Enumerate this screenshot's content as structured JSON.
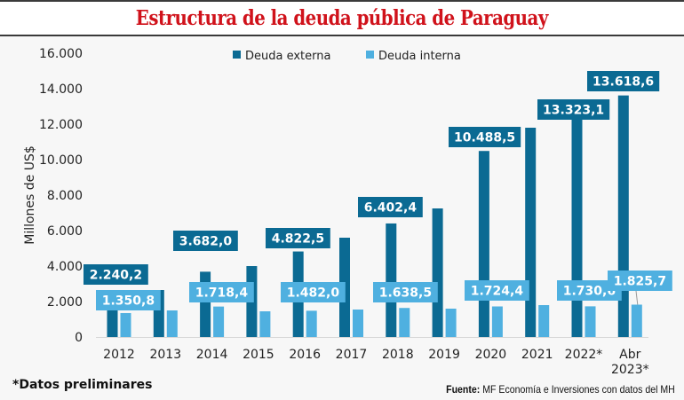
{
  "header": {
    "title": "Estructura de la deuda pública de Paraguay"
  },
  "footer": {
    "footnote": "*Datos preliminares",
    "source_label": "Fuente:",
    "source_text": "MF Economía e Inversiones con datos del MH"
  },
  "colors": {
    "title": "#d0121b",
    "externa": "#0b6a93",
    "interna": "#4fb0e0",
    "axis_text": "#222222"
  },
  "chart_data": {
    "type": "bar",
    "title": "Estructura de la deuda pública de Paraguay",
    "xlabel": "",
    "ylabel": "Millones de US$",
    "ylim": [
      0,
      16000
    ],
    "yticks": [
      0,
      2000,
      4000,
      6000,
      8000,
      10000,
      12000,
      14000,
      16000
    ],
    "ytick_labels": [
      "0",
      "2.000",
      "4.000",
      "6.000",
      "8.000",
      "10.000",
      "12.000",
      "14.000",
      "16.000"
    ],
    "grid": false,
    "legend_position": "top-center",
    "categories": [
      "2012",
      "2013",
      "2014",
      "2015",
      "2016",
      "2017",
      "2018",
      "2019",
      "2020",
      "2021",
      "2022*",
      "Abr 2023*"
    ],
    "category_lines": [
      [
        "2012"
      ],
      [
        "2013"
      ],
      [
        "2014"
      ],
      [
        "2015"
      ],
      [
        "2016"
      ],
      [
        "2017"
      ],
      [
        "2018"
      ],
      [
        "2019"
      ],
      [
        "2020"
      ],
      [
        "2021"
      ],
      [
        "2022*"
      ],
      [
        "Abr",
        "2023*"
      ]
    ],
    "series": [
      {
        "name": "Deuda externa",
        "values": [
          2240.2,
          2650,
          3682.0,
          4000,
          4822.5,
          5600,
          6402.4,
          7250,
          10488.5,
          11800,
          13323.1,
          13618.6
        ],
        "labels": [
          "2.240,2",
          null,
          "3.682,0",
          null,
          "4.822,5",
          null,
          "6.402,4",
          null,
          "10.488,5",
          null,
          "13.323,1",
          "13.618,6"
        ]
      },
      {
        "name": "Deuda interna",
        "values": [
          1350.8,
          1500,
          1718.4,
          1450,
          1482.0,
          1550,
          1638.5,
          1600,
          1724.4,
          1800,
          1730.6,
          1825.7
        ],
        "labels": [
          "1.350,8",
          null,
          "1.718,4",
          null,
          "1.482,0",
          null,
          "1.638,5",
          null,
          "1.724,4",
          null,
          "1.730,6",
          "1.825,7"
        ]
      }
    ]
  }
}
